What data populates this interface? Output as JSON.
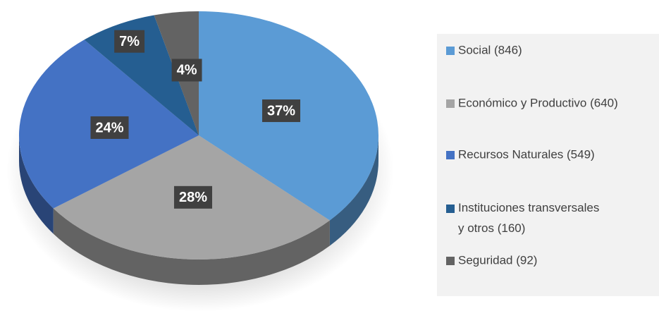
{
  "chart_data": {
    "type": "pie",
    "categories": [
      "Social (846)",
      "Económico y Productivo (640)",
      "Recursos Naturales (549)",
      "Instituciones transversales y otros (160)",
      "Seguridad (92)"
    ],
    "values": [
      37,
      28,
      24,
      7,
      4
    ],
    "value_labels": [
      "37%",
      "28%",
      "24%",
      "7%",
      "4%"
    ],
    "colors": [
      "#5b9bd5",
      "#a5a5a5",
      "#4472c4",
      "#255e91",
      "#636363"
    ],
    "legend": "right"
  }
}
